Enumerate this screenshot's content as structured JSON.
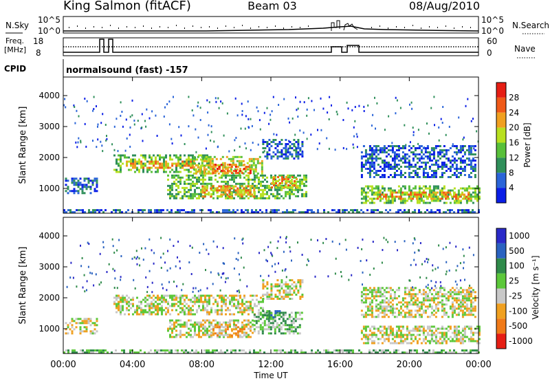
{
  "header": {
    "station": "King Salmon (fitACF)",
    "beam": "Beam 03",
    "date": "08/Aug/2010"
  },
  "top_panels": {
    "nsky_label": "N.Sky",
    "nsky_ticks": [
      "10^5",
      "10^0"
    ],
    "nsearch_label": "N.Search",
    "nsearch_ticks": [
      "10^5",
      "10^0"
    ],
    "freq_label_line1": "Freq.",
    "freq_label_line2": "[MHz]",
    "freq_ticks": [
      "18",
      "8"
    ],
    "nave_label": "Nave",
    "nave_ticks": [
      "60",
      "0"
    ],
    "cpid_label": "CPID",
    "cpid_text": "normalsound (fast) -157"
  },
  "colors": {
    "power": [
      "#0a1ee6",
      "#2a64d8",
      "#2f8f5a",
      "#58c03a",
      "#b8e020",
      "#f0a020",
      "#f05a18",
      "#e61e14"
    ],
    "velocity": [
      "#2a2ac8",
      "#2a62c0",
      "#2f8a4a",
      "#5cc83a",
      "#c8c8c8",
      "#f0a020",
      "#f07a18",
      "#e61e14"
    ]
  },
  "chart_data": [
    {
      "type": "heatmap",
      "panel": "power",
      "ylabel": "Slant Range [km]",
      "ylim": [
        200,
        4600
      ],
      "yticks": [
        "1000",
        "2000",
        "3000",
        "4000"
      ],
      "xlim": [
        0,
        24
      ],
      "colorbar_label": "Power [dB]",
      "colorbar_ticks": [
        "4",
        "8",
        "12",
        "16",
        "20",
        "24",
        "28"
      ],
      "regions": [
        {
          "t0": 0.1,
          "t1": 2.0,
          "r0": 850,
          "r1": 1350,
          "level": 1
        },
        {
          "t0": 2.9,
          "t1": 8.5,
          "r0": 1550,
          "r1": 2100,
          "level": 3
        },
        {
          "t0": 3.5,
          "t1": 7.5,
          "r0": 1650,
          "r1": 1900,
          "level": 5
        },
        {
          "t0": 7.5,
          "t1": 11.5,
          "r0": 1450,
          "r1": 2050,
          "level": 4
        },
        {
          "t0": 8.5,
          "t1": 10.8,
          "r0": 1500,
          "r1": 1800,
          "level": 6
        },
        {
          "t0": 11.5,
          "t1": 13.8,
          "r0": 1950,
          "r1": 2600,
          "level": 1
        },
        {
          "t0": 6.0,
          "t1": 14.0,
          "r0": 700,
          "r1": 1450,
          "level": 3
        },
        {
          "t0": 8.0,
          "t1": 11.0,
          "r0": 750,
          "r1": 1100,
          "level": 5
        },
        {
          "t0": 12.0,
          "t1": 13.5,
          "r0": 1000,
          "r1": 1400,
          "level": 5
        },
        {
          "t0": 17.2,
          "t1": 24.0,
          "r0": 500,
          "r1": 1100,
          "level": 3
        },
        {
          "t0": 18.0,
          "t1": 23.5,
          "r0": 650,
          "r1": 900,
          "level": 5
        },
        {
          "t0": 17.2,
          "t1": 23.8,
          "r0": 1350,
          "r1": 2400,
          "level": 1
        },
        {
          "t0": 0.0,
          "t1": 24.0,
          "r0": 200,
          "r1": 330,
          "level": 1
        }
      ]
    },
    {
      "type": "heatmap",
      "panel": "velocity",
      "ylabel": "Slant Range [km]",
      "xlabel": "Time UT",
      "ylim": [
        200,
        4600
      ],
      "yticks": [
        "1000",
        "2000",
        "3000",
        "4000"
      ],
      "xlim": [
        0,
        24
      ],
      "xticks": [
        "00:00",
        "04:00",
        "08:00",
        "12:00",
        "16:00",
        "20:00",
        "00:00"
      ],
      "colorbar_label": "Velocity [m s⁻¹]",
      "colorbar_ticks": [
        "1000",
        "500",
        "100",
        "25",
        "-25",
        "-100",
        "-500",
        "-1000"
      ],
      "regions": [
        {
          "t0": 0.1,
          "t1": 2.0,
          "r0": 850,
          "r1": 1350,
          "level": 4
        },
        {
          "t0": 2.9,
          "t1": 11.5,
          "r0": 1450,
          "r1": 2100,
          "level": 4
        },
        {
          "t0": 11.5,
          "t1": 13.8,
          "r0": 1950,
          "r1": 2600,
          "level": 4
        },
        {
          "t0": 6.0,
          "t1": 11.0,
          "r0": 700,
          "r1": 1300,
          "level": 4
        },
        {
          "t0": 8.5,
          "t1": 10.5,
          "r0": 780,
          "r1": 1150,
          "level": 5
        },
        {
          "t0": 11.0,
          "t1": 13.8,
          "r0": 850,
          "r1": 1550,
          "level": 3
        },
        {
          "t0": 11.5,
          "t1": 12.5,
          "r0": 1350,
          "r1": 1600,
          "level": 2
        },
        {
          "t0": 17.2,
          "t1": 24.0,
          "r0": 550,
          "r1": 1100,
          "level": 4
        },
        {
          "t0": 17.2,
          "t1": 23.8,
          "r0": 1350,
          "r1": 2350,
          "level": 4
        },
        {
          "t0": 0.0,
          "t1": 24.0,
          "r0": 200,
          "r1": 330,
          "level": 3
        }
      ]
    }
  ]
}
